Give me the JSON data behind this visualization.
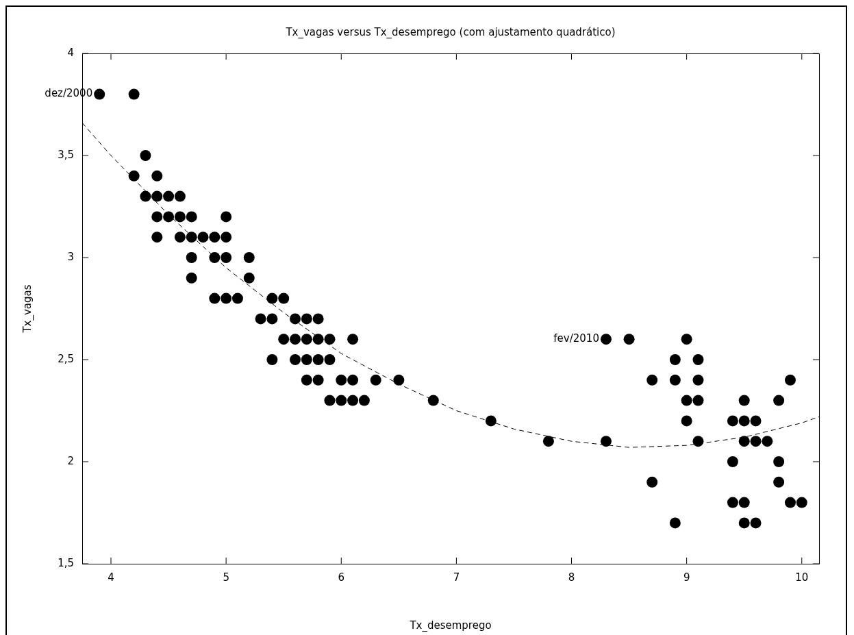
{
  "chart_data": {
    "type": "scatter",
    "title": "Tx_vagas versus Tx_desemprego (com ajustamento quadrático)",
    "xlabel": "Tx_desemprego",
    "ylabel": "Tx_vagas",
    "xlim": [
      3.75,
      10.15
    ],
    "xticks": [
      4,
      5,
      6,
      7,
      8,
      9,
      10
    ],
    "ylim": [
      1.5,
      4
    ],
    "yticks": [
      {
        "value": 1.5,
        "label": "1,5"
      },
      2,
      {
        "value": 2.5,
        "label": "2,5"
      },
      3,
      {
        "value": 3.5,
        "label": "3,5"
      },
      4
    ],
    "marker": "circle",
    "series": [
      {
        "color": "#000000",
        "x": [
          3.9,
          4.2,
          4.3,
          4.2,
          4.4,
          4.3,
          4.4,
          4.5,
          4.6,
          4.4,
          4.5,
          4.6,
          4.7,
          5.0,
          4.4,
          4.6,
          4.7,
          4.8,
          4.9,
          5.0,
          4.7,
          4.9,
          5.0,
          5.2,
          4.7,
          5.2,
          4.9,
          5.0,
          5.1,
          5.4,
          5.5,
          5.3,
          5.4,
          5.6,
          5.7,
          5.8,
          5.5,
          5.6,
          5.7,
          5.8,
          5.9,
          6.1,
          5.4,
          5.6,
          5.7,
          5.8,
          5.9,
          5.7,
          5.8,
          6.0,
          6.1,
          6.3,
          6.5,
          5.9,
          6.0,
          6.1,
          6.2,
          6.8,
          7.3,
          7.8,
          8.3,
          8.3,
          8.5,
          9.0,
          8.9,
          9.1,
          8.7,
          8.9,
          9.1,
          9.9,
          9.0,
          9.1,
          9.5,
          9.8,
          9.0,
          9.4,
          9.5,
          9.6,
          9.1,
          9.5,
          9.6,
          9.7,
          9.4,
          9.8,
          8.7,
          9.8,
          9.4,
          9.5,
          9.9,
          10.0,
          8.9,
          9.5,
          9.6
        ],
        "values": [
          3.8,
          3.8,
          3.5,
          3.4,
          3.4,
          3.3,
          3.3,
          3.3,
          3.3,
          3.2,
          3.2,
          3.2,
          3.2,
          3.2,
          3.1,
          3.1,
          3.1,
          3.1,
          3.1,
          3.1,
          3.0,
          3.0,
          3.0,
          3.0,
          2.9,
          2.9,
          2.8,
          2.8,
          2.8,
          2.8,
          2.8,
          2.7,
          2.7,
          2.7,
          2.7,
          2.7,
          2.6,
          2.6,
          2.6,
          2.6,
          2.6,
          2.6,
          2.5,
          2.5,
          2.5,
          2.5,
          2.5,
          2.4,
          2.4,
          2.4,
          2.4,
          2.4,
          2.4,
          2.3,
          2.3,
          2.3,
          2.3,
          2.3,
          2.2,
          2.1,
          2.1,
          2.6,
          2.6,
          2.6,
          2.5,
          2.5,
          2.4,
          2.4,
          2.4,
          2.4,
          2.3,
          2.3,
          2.3,
          2.3,
          2.2,
          2.2,
          2.2,
          2.2,
          2.1,
          2.1,
          2.1,
          2.1,
          2.0,
          2.0,
          1.9,
          1.9,
          1.8,
          1.8,
          1.8,
          1.8,
          1.7,
          1.7,
          1.7
        ]
      },
      {
        "type": "line",
        "color": "#000000",
        "marker": "none",
        "line_style": "dashed",
        "x": [
          3.75,
          4,
          4.5,
          5,
          5.5,
          6,
          6.5,
          7,
          7.5,
          8,
          8.5,
          9,
          9.5,
          10,
          10.15
        ],
        "values": [
          3.66,
          3.5,
          3.21,
          2.95,
          2.73,
          2.53,
          2.38,
          2.25,
          2.16,
          2.1,
          2.07,
          2.08,
          2.12,
          2.19,
          2.22
        ]
      }
    ],
    "annotations": [
      {
        "text": "dez/2000",
        "x": 3.9,
        "y": 3.8
      },
      {
        "text": "fev/2010",
        "x": 8.3,
        "y": 2.6
      }
    ]
  }
}
